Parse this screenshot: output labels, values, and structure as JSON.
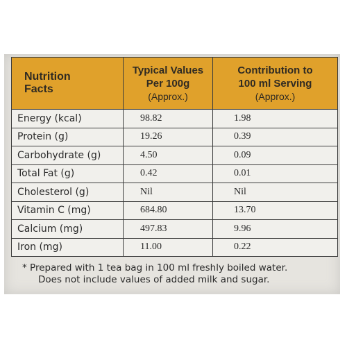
{
  "table": {
    "header": {
      "col1_line1": "Nutrition",
      "col1_line2": "Facts",
      "col2_line1": "Typical Values",
      "col2_line2": "Per 100g",
      "col2_line3": "(Approx.)",
      "col3_line1": "Contribution to",
      "col3_line2": "100 ml Serving",
      "col3_line3": "(Approx.)"
    },
    "accent_color": "#e0a12b",
    "rows": [
      {
        "nutrient": "Energy (kcal)",
        "per_100g": "98.82",
        "per_serving": "1.98"
      },
      {
        "nutrient": "Protein (g)",
        "per_100g": "19.26",
        "per_serving": "0.39"
      },
      {
        "nutrient": "Carbohydrate (g)",
        "per_100g": "4.50",
        "per_serving": "0.09"
      },
      {
        "nutrient": "Total Fat (g)",
        "per_100g": "0.42",
        "per_serving": "0.01"
      },
      {
        "nutrient": "Cholesterol (g)",
        "per_100g": "Nil",
        "per_serving": "Nil"
      },
      {
        "nutrient": "Vitamin C (mg)",
        "per_100g": "684.80",
        "per_serving": "13.70"
      },
      {
        "nutrient": "Calcium (mg)",
        "per_100g": "497.83",
        "per_serving": "9.96"
      },
      {
        "nutrient": "Iron (mg)",
        "per_100g": "11.00",
        "per_serving": "0.22"
      }
    ]
  },
  "footnote": {
    "line1": "* Prepared with 1 tea bag in 100 ml freshly boiled water.",
    "line2": "Does not include values of added milk and sugar."
  }
}
